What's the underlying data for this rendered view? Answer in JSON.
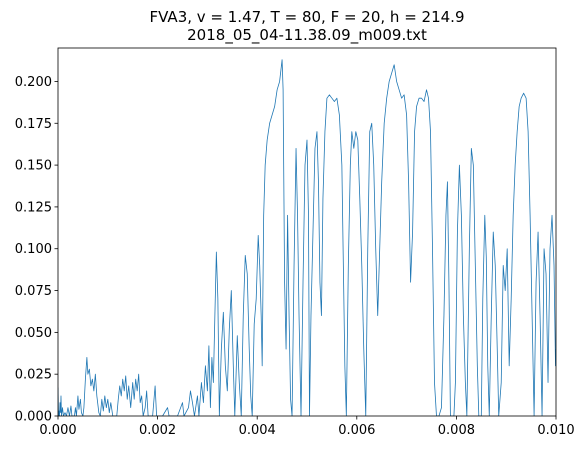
{
  "chart_data": {
    "type": "line",
    "title": "FVA3, v = 1.47, T = 80, F = 20, h = 214.9",
    "subtitle": "2018_05_04-11.38.09_m009.txt",
    "color": "#1f77b4",
    "xlim": [
      0,
      0.01
    ],
    "ylim": [
      0,
      0.22
    ],
    "xticks": [
      {
        "value": 0,
        "label": "0.000"
      },
      {
        "value": 0.002,
        "label": "0.002"
      },
      {
        "value": 0.004,
        "label": "0.004"
      },
      {
        "value": 0.006,
        "label": "0.006"
      },
      {
        "value": 0.008,
        "label": "0.008"
      },
      {
        "value": 0.01,
        "label": "0.010"
      }
    ],
    "yticks": [
      {
        "value": 0,
        "label": "0.000"
      },
      {
        "value": 0.025,
        "label": "0.025"
      },
      {
        "value": 0.05,
        "label": "0.050"
      },
      {
        "value": 0.075,
        "label": "0.075"
      },
      {
        "value": 0.1,
        "label": "0.100"
      },
      {
        "value": 0.125,
        "label": "0.125"
      },
      {
        "value": 0.15,
        "label": "0.150"
      },
      {
        "value": 0.175,
        "label": "0.175"
      },
      {
        "value": 0.2,
        "label": "0.200"
      }
    ],
    "x": [
      0,
      1e-05,
      2e-05,
      3e-05,
      4e-05,
      5e-05,
      6e-05,
      7e-05,
      9e-05,
      0.00011,
      0.00014,
      0.00017,
      0.0002,
      0.00023,
      0.00026,
      0.00028,
      0.00033,
      0.00035,
      0.00037,
      0.0004,
      0.00042,
      0.00045,
      0.00047,
      0.0005,
      0.00052,
      0.00055,
      0.00058,
      0.0006,
      0.00063,
      0.00066,
      0.00069,
      0.00072,
      0.00075,
      0.00078,
      0.00082,
      0.00085,
      0.00088,
      0.00091,
      0.00094,
      0.00097,
      0.001,
      0.00103,
      0.00106,
      0.0011,
      0.00118,
      0.00121,
      0.00124,
      0.00127,
      0.0013,
      0.00133,
      0.00136,
      0.00139,
      0.00142,
      0.00146,
      0.0015,
      0.00153,
      0.00156,
      0.00159,
      0.00162,
      0.00165,
      0.00168,
      0.00171,
      0.00175,
      0.00178,
      0.00181,
      0.0019,
      0.00195,
      0.00198,
      0.0021,
      0.0022,
      0.00223,
      0.0024,
      0.0025,
      0.00253,
      0.00262,
      0.00266,
      0.0027,
      0.00274,
      0.0028,
      0.00283,
      0.00288,
      0.00292,
      0.00296,
      0.003,
      0.00303,
      0.00306,
      0.00309,
      0.00312,
      0.00315,
      0.00318,
      0.00321,
      0.00324,
      0.00328,
      0.00332,
      0.00336,
      0.0034,
      0.00344,
      0.00348,
      0.00352,
      0.00355,
      0.0036,
      0.00364,
      0.00368,
      0.00372,
      0.00376,
      0.0038,
      0.00384,
      0.00387,
      0.0039,
      0.00394,
      0.00398,
      0.00402,
      0.00405,
      0.00408,
      0.0041,
      0.00413,
      0.00416,
      0.0042,
      0.00425,
      0.0043,
      0.00435,
      0.0044,
      0.00445,
      0.0045,
      0.00452,
      0.00455,
      0.00458,
      0.00461,
      0.00464,
      0.00467,
      0.0047,
      0.00474,
      0.00478,
      0.00481,
      0.00484,
      0.00488,
      0.00492,
      0.00496,
      0.005,
      0.00503,
      0.00505,
      0.00508,
      0.00512,
      0.00516,
      0.0052,
      0.00523,
      0.00526,
      0.00529,
      0.00532,
      0.00536,
      0.0054,
      0.00545,
      0.0055,
      0.00555,
      0.0056,
      0.00565,
      0.0057,
      0.00573,
      0.00576,
      0.00579,
      0.00583,
      0.00587,
      0.0059,
      0.00594,
      0.00598,
      0.00602,
      0.00606,
      0.0061,
      0.00614,
      0.00618,
      0.00622,
      0.00626,
      0.0063,
      0.00634,
      0.00638,
      0.00642,
      0.00646,
      0.0065,
      0.00655,
      0.0066,
      0.00665,
      0.0067,
      0.00675,
      0.0068,
      0.00685,
      0.0069,
      0.00695,
      0.007,
      0.00704,
      0.00708,
      0.00712,
      0.00716,
      0.0072,
      0.00725,
      0.0073,
      0.00735,
      0.0074,
      0.00744,
      0.00748,
      0.00752,
      0.00756,
      0.0076,
      0.00765,
      0.0077,
      0.00775,
      0.00779,
      0.00782,
      0.00785,
      0.00788,
      0.00795,
      0.00798,
      0.00802,
      0.00806,
      0.0081,
      0.00814,
      0.00818,
      0.00821,
      0.00826,
      0.0083,
      0.00834,
      0.00838,
      0.00842,
      0.00845,
      0.0085,
      0.00853,
      0.00857,
      0.0086,
      0.00863,
      0.00866,
      0.0087,
      0.00874,
      0.00878,
      0.00882,
      0.00885,
      0.0089,
      0.00894,
      0.00898,
      0.00902,
      0.00906,
      0.0091,
      0.00914,
      0.00918,
      0.00922,
      0.00926,
      0.0093,
      0.00935,
      0.0094,
      0.00944,
      0.00948,
      0.00952,
      0.00956,
      0.0096,
      0.00964,
      0.00968,
      0.00972,
      0.00976,
      0.0098,
      0.00984,
      0.00988,
      0.00992,
      0.00996,
      0.00999,
      0.01
    ],
    "values": [
      0.017,
      0,
      0.003,
      0,
      0.008,
      0.002,
      0.012,
      0,
      0.005,
      0,
      0.002,
      0,
      0.005,
      0,
      0.006,
      0,
      0,
      0.005,
      0,
      0.012,
      0.004,
      0.01,
      0.002,
      0,
      0.005,
      0.022,
      0.035,
      0.025,
      0.028,
      0.018,
      0.022,
      0.015,
      0.025,
      0.012,
      0.002,
      0,
      0.01,
      0.003,
      0.012,
      0.005,
      0.01,
      0.002,
      0.008,
      0,
      0,
      0.01,
      0.018,
      0.012,
      0.022,
      0.015,
      0.024,
      0.01,
      0.018,
      0.005,
      0.02,
      0.01,
      0.022,
      0.015,
      0.025,
      0.008,
      0.012,
      0,
      0.005,
      0.015,
      0,
      0,
      0.018,
      0,
      0,
      0.005,
      0,
      0,
      0.008,
      0,
      0.005,
      0.015,
      0.008,
      0,
      0.012,
      0,
      0.02,
      0.008,
      0.03,
      0.015,
      0.042,
      0.005,
      0.035,
      0.02,
      0.06,
      0.098,
      0.07,
      0,
      0.04,
      0.062,
      0.03,
      0.015,
      0.052,
      0.075,
      0.03,
      0,
      0.048,
      0.02,
      0,
      0.06,
      0.096,
      0.085,
      0.04,
      0.012,
      0,
      0.055,
      0.07,
      0.108,
      0.09,
      0.06,
      0.03,
      0.12,
      0.15,
      0.165,
      0.175,
      0.18,
      0.185,
      0.195,
      0.2,
      0.213,
      0.195,
      0.08,
      0.04,
      0.12,
      0.06,
      0.01,
      0,
      0.09,
      0.16,
      0.12,
      0.06,
      0,
      0.08,
      0.15,
      0.165,
      0.12,
      0,
      0.06,
      0.11,
      0.16,
      0.17,
      0.14,
      0.08,
      0.06,
      0.13,
      0.17,
      0.19,
      0.192,
      0.19,
      0.188,
      0.19,
      0.18,
      0.15,
      0.09,
      0.03,
      0,
      0.09,
      0.15,
      0.17,
      0.16,
      0.17,
      0.165,
      0.13,
      0.09,
      0.04,
      0,
      0.1,
      0.17,
      0.175,
      0.15,
      0.1,
      0.06,
      0.1,
      0.14,
      0.175,
      0.19,
      0.2,
      0.205,
      0.21,
      0.2,
      0.195,
      0.19,
      0.192,
      0.18,
      0.14,
      0.08,
      0.11,
      0.17,
      0.185,
      0.19,
      0.19,
      0.188,
      0.195,
      0.19,
      0.17,
      0.1,
      0.02,
      0,
      0,
      0.005,
      0.06,
      0.12,
      0.14,
      0.08,
      0,
      0,
      0.02,
      0.11,
      0.15,
      0.12,
      0.06,
      0.02,
      0,
      0.1,
      0.16,
      0.15,
      0.09,
      0.03,
      0,
      0,
      0.07,
      0.12,
      0.095,
      0.03,
      0,
      0.06,
      0.11,
      0.09,
      0.04,
      0,
      0.02,
      0.09,
      0.075,
      0.1,
      0.03,
      0.07,
      0.12,
      0.15,
      0.17,
      0.185,
      0.19,
      0.193,
      0.19,
      0.17,
      0.12,
      0.06,
      0,
      0.08,
      0.11,
      0.06,
      0,
      0.1,
      0.085,
      0.02,
      0.1,
      0.12,
      0.09,
      0.03,
      0.04
    ]
  }
}
